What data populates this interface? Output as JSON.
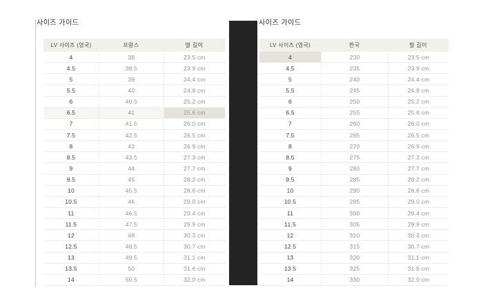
{
  "left_panel": {
    "title": "사이즈 가이드",
    "table": {
      "headers": [
        "LV 사이즈 (영국)",
        "프랑스",
        "발 길이"
      ],
      "rows": [
        [
          "4",
          "38",
          "23.5 cm"
        ],
        [
          "4.5",
          "38.5",
          "23.9 cm"
        ],
        [
          "5",
          "39",
          "24.4 cm"
        ],
        [
          "5.5",
          "40",
          "24.8 cm"
        ],
        [
          "6",
          "40.5",
          "25.2 cm"
        ],
        [
          "6.5",
          "41",
          "25.6 cm"
        ],
        [
          "7",
          "41.5",
          "26.0 cm"
        ],
        [
          "7.5",
          "42.5",
          "26.5 cm"
        ],
        [
          "8",
          "43",
          "26.9 cm"
        ],
        [
          "8.5",
          "43.5",
          "27.3 cm"
        ],
        [
          "9",
          "44",
          "27.7 cm"
        ],
        [
          "9.5",
          "45",
          "28.2 cm"
        ],
        [
          "10",
          "45.5",
          "28.6 cm"
        ],
        [
          "10.5",
          "46",
          "29.0 cm"
        ],
        [
          "11",
          "46.5",
          "29.4 cm"
        ],
        [
          "11.5",
          "47.5",
          "29.9 cm"
        ],
        [
          "12",
          "48",
          "30.3 cm"
        ],
        [
          "12.5",
          "48.5",
          "30.7 cm"
        ],
        [
          "13",
          "49.5",
          "31.1 cm"
        ],
        [
          "13.5",
          "50",
          "31.6 cm"
        ],
        [
          "14",
          "50.5",
          "32.0 cm"
        ]
      ],
      "highlight": {
        "row_index": 5,
        "full_row": true,
        "strong_cell_index": 2
      }
    }
  },
  "right_panel": {
    "title": "사이즈 가이드",
    "table": {
      "headers": [
        "LV 사이즈 (영국)",
        "한국",
        "발 길이"
      ],
      "rows": [
        [
          "4",
          "230",
          "23.5 cm"
        ],
        [
          "4.5",
          "235",
          "23.9 cm"
        ],
        [
          "5",
          "240",
          "24.4 cm"
        ],
        [
          "5.5",
          "245",
          "24.8 cm"
        ],
        [
          "6",
          "250",
          "25.2 cm"
        ],
        [
          "6.5",
          "255",
          "25.6 cm"
        ],
        [
          "7",
          "260",
          "26.0 cm"
        ],
        [
          "7.5",
          "265",
          "26.5 cm"
        ],
        [
          "8",
          "270",
          "26.9 cm"
        ],
        [
          "8.5",
          "275",
          "27.3 cm"
        ],
        [
          "9",
          "280",
          "27.7 cm"
        ],
        [
          "9.5",
          "285",
          "28.2 cm"
        ],
        [
          "10",
          "290",
          "28.6 cm"
        ],
        [
          "10.5",
          "295",
          "29.0 cm"
        ],
        [
          "11",
          "300",
          "29.4 cm"
        ],
        [
          "11.5",
          "305",
          "29.9 cm"
        ],
        [
          "12",
          "310",
          "30.3 cm"
        ],
        [
          "12.5",
          "315",
          "30.7 cm"
        ],
        [
          "13",
          "320",
          "31.1 cm"
        ],
        [
          "13.5",
          "325",
          "31.6 cm"
        ],
        [
          "14",
          "330",
          "32.0 cm"
        ]
      ],
      "highlight": {
        "row_index": 0,
        "full_row": false,
        "strong_cell_index": 0
      }
    }
  },
  "colors": {
    "header_bg": "#f2f0eb",
    "row_highlight_bg": "#f7f5f1",
    "cell_highlight_bg": "#e5e2dc",
    "divider_bar": "#242424"
  }
}
